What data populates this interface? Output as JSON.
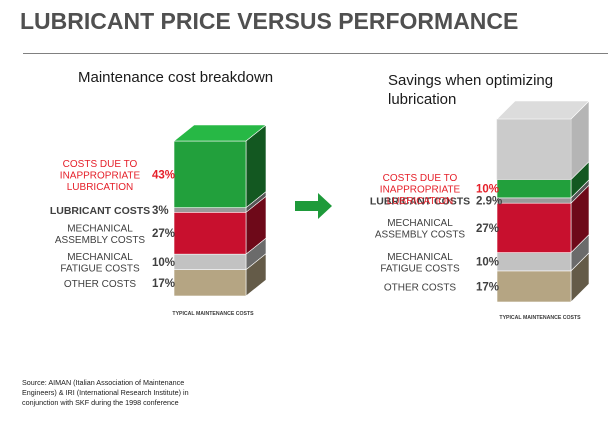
{
  "page": {
    "title": "LUBRICANT PRICE VERSUS PERFORMANCE"
  },
  "colors": {
    "inappropriate": "#22a03c",
    "lubricant": "#9a9a9a",
    "mechanical_assembly": "#c8102e",
    "mechanical_fatigue": "#c2c2c2",
    "other": "#b5a583",
    "savings": "#cbcbcb",
    "arrow": "#1e9a3a",
    "red_label": "#e5202a",
    "gray_label": "#404040"
  },
  "chart_data": [
    {
      "type": "stacked-bar-3d",
      "title": "Maintenance cost breakdown",
      "footnote": "TYPICAL MAINTENANCE COSTS",
      "segments": [
        {
          "key": "other",
          "label": [
            "OTHER COSTS"
          ],
          "value_label": "17%",
          "value": 17
        },
        {
          "key": "mechanical_fatigue",
          "label": [
            "MECHANICAL",
            "FATIGUE COSTS"
          ],
          "value_label": "10%",
          "value": 10
        },
        {
          "key": "mechanical_assembly",
          "label": [
            "MECHANICAL",
            "ASSEMBLY COSTS"
          ],
          "value_label": "27%",
          "value": 27
        },
        {
          "key": "lubricant",
          "label": [
            "LUBRICANT COSTS"
          ],
          "value_label": "3%",
          "value": 3,
          "bold": true
        },
        {
          "key": "inappropriate",
          "label": [
            "COSTS DUE TO",
            "INAPPROPRIATE",
            "LUBRICATION"
          ],
          "value_label": "43%",
          "value": 43,
          "red": true
        }
      ]
    },
    {
      "type": "stacked-bar-3d",
      "title": "Savings when optimizing lubrication",
      "footnote": "TYPICAL MAINTENANCE COSTS",
      "segments": [
        {
          "key": "other",
          "label": [
            "OTHER COSTS"
          ],
          "value_label": "17%",
          "value": 17
        },
        {
          "key": "mechanical_fatigue",
          "label": [
            "MECHANICAL",
            "FATIGUE COSTS"
          ],
          "value_label": "10%",
          "value": 10
        },
        {
          "key": "mechanical_assembly",
          "label": [
            "MECHANICAL",
            "ASSEMBLY COSTS"
          ],
          "value_label": "27%",
          "value": 27
        },
        {
          "key": "lubricant",
          "label": [
            "LUBRICANT COSTS"
          ],
          "value_label": "2.9%",
          "value": 2.9,
          "bold": true
        },
        {
          "key": "inappropriate",
          "label": [
            "COSTS DUE TO",
            "INAPPROPRIATE",
            "LUBRICATION"
          ],
          "value_label": "10%",
          "value": 10,
          "red": true
        },
        {
          "key": "savings",
          "label": [],
          "value_label": "",
          "value": 33.1
        }
      ]
    }
  ],
  "source": {
    "lines": [
      "Source: AIMAN (Italian Association of Maintenance",
      "Engineers) & IRI (International Research Institute) in",
      "conjunction with SKF during the 1998 conference"
    ]
  }
}
